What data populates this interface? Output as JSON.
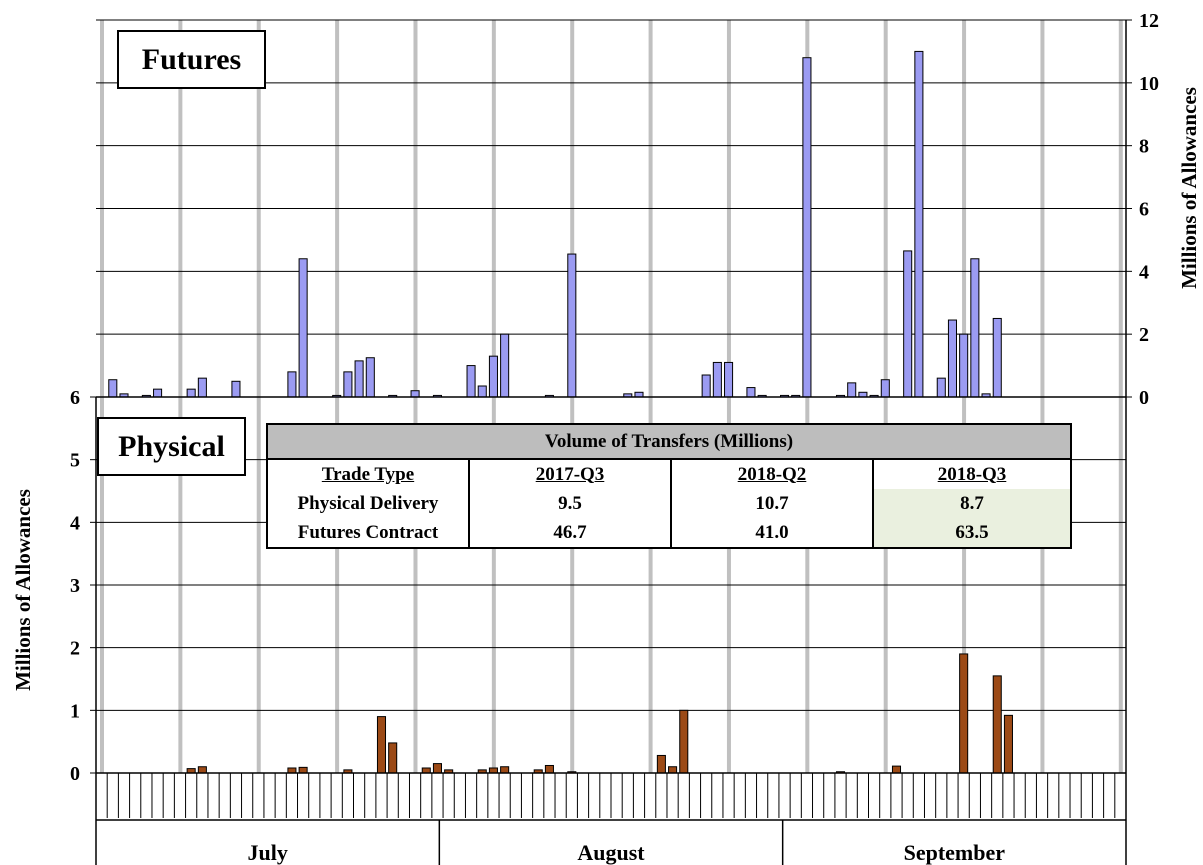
{
  "chart_data": [
    {
      "type": "bar",
      "panel_label": "Futures",
      "ylabel": "Millions of Allowances",
      "ylim": [
        0,
        12
      ],
      "yticks": [
        "0",
        "2",
        "4",
        "6",
        "8",
        "10",
        "12"
      ],
      "axis_side": "right",
      "grid": true,
      "color": "#9b9bf2",
      "x": [
        1,
        2,
        4,
        5,
        8,
        9,
        12,
        17,
        18,
        21,
        22,
        23,
        24,
        26,
        28,
        30,
        33,
        34,
        35,
        36,
        40,
        42,
        47,
        48,
        54,
        55,
        56,
        58,
        59,
        61,
        62,
        63,
        66,
        67,
        68,
        69,
        70,
        72,
        73,
        75,
        76,
        77,
        78,
        79,
        80,
        81,
        84,
        85,
        86,
        87
      ],
      "values": [
        0.55,
        0.1,
        0.05,
        0.25,
        0.25,
        0.6,
        0.5,
        0.8,
        4.4,
        0.05,
        0.8,
        1.15,
        1.25,
        0.05,
        0.2,
        0.05,
        1.0,
        0.35,
        1.3,
        2.0,
        0.05,
        4.55,
        0.1,
        0.15,
        0.7,
        1.1,
        1.1,
        0.3,
        0.05,
        0.05,
        0.05,
        10.8,
        0.05,
        0.45,
        0.15,
        0.05,
        0.55,
        4.65,
        11.0,
        0.6,
        2.45,
        2.0,
        4.4,
        0.1,
        2.5,
        0.0,
        0.0,
        0.0,
        0.0,
        0.0
      ]
    },
    {
      "type": "bar",
      "panel_label": "Physical",
      "ylabel": "Millions of Allowances",
      "ylim": [
        0,
        6
      ],
      "yticks": [
        "0",
        "1",
        "2",
        "3",
        "4",
        "5",
        "6"
      ],
      "axis_side": "left",
      "grid": true,
      "color": "#9c4a16",
      "x": [
        8,
        9,
        17,
        18,
        22,
        25,
        26,
        29,
        30,
        31,
        34,
        35,
        36,
        39,
        40,
        42,
        50,
        51,
        52,
        66,
        71,
        77,
        80,
        81
      ],
      "values": [
        0.07,
        0.1,
        0.08,
        0.09,
        0.05,
        0.9,
        0.48,
        0.08,
        0.15,
        0.05,
        0.05,
        0.08,
        0.1,
        0.05,
        0.12,
        0.02,
        0.28,
        0.1,
        1.0,
        0.02,
        0.11,
        1.9,
        1.55,
        0.92
      ]
    }
  ],
  "months": [
    "July",
    "August",
    "September"
  ],
  "table": {
    "title": "Volume of Transfers (Millions)",
    "headers": [
      "Trade Type",
      "2017-Q3",
      "2018-Q2",
      "2018-Q3"
    ],
    "rows": [
      {
        "label": "Physical Delivery",
        "v1": "9.5",
        "v2": "10.7",
        "v3": "8.7"
      },
      {
        "label": "Futures Contract",
        "v1": "46.7",
        "v2": "41.0",
        "v3": "63.5"
      }
    ]
  },
  "colors": {
    "futures_bar": "#9b9bf2",
    "physical_bar": "#9c4a16",
    "week_divider": "#c0c0c0",
    "table_header": "#bdbdbd",
    "highlight": "#eaf0df"
  }
}
